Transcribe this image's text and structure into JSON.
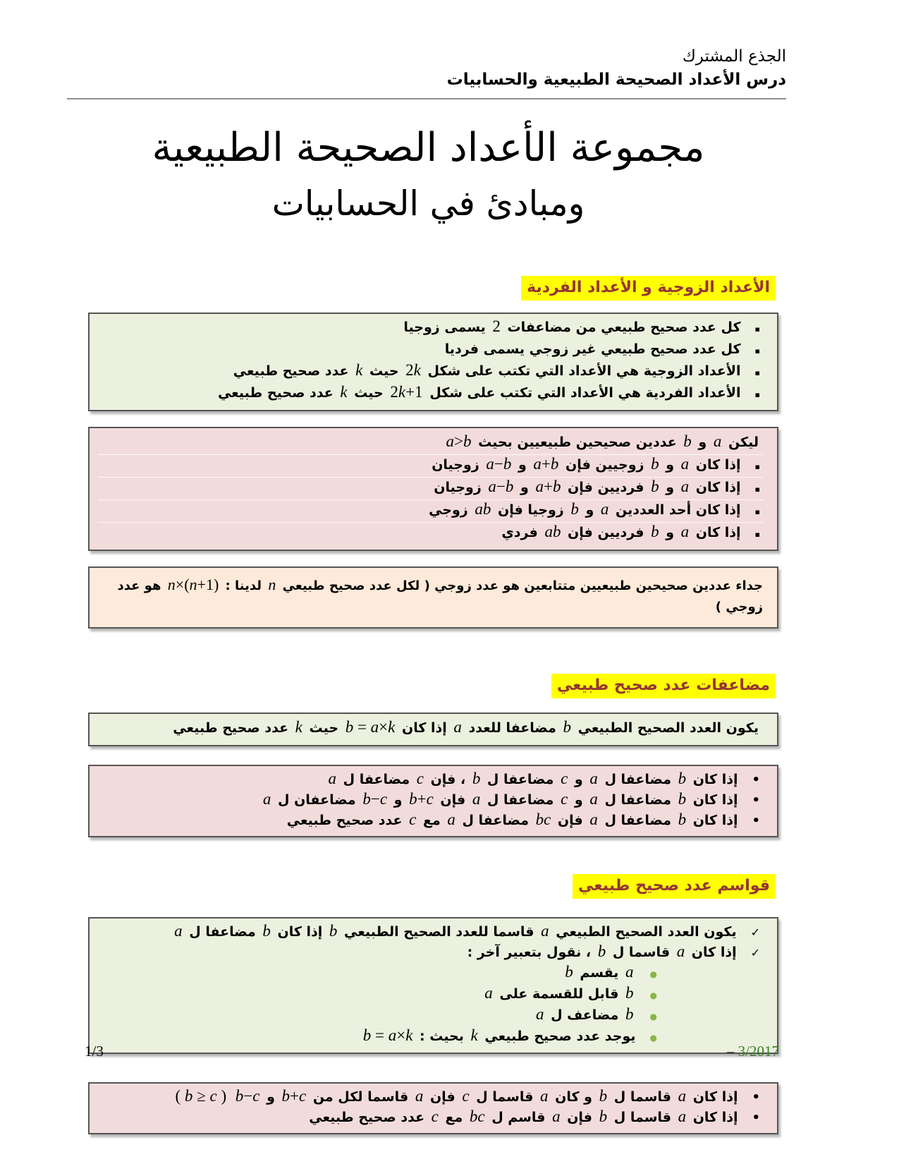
{
  "header": {
    "line1": "الجذع المشترك",
    "line2": "درس الأعداد الصحيحة الطبيعية والحسابيات"
  },
  "title": {
    "line1": "مجموعة الأعداد الصحيحة الطبيعية",
    "line2": "ومبادئ في الحسابيات"
  },
  "sections": {
    "even_odd": {
      "heading": "الأعداد الزوجية و الأعداد الفردية",
      "rules": [
        [
          "كل عدد صحيح طبيعي من مضاعفات ",
          {
            "m": "2"
          },
          " يسمى زوجيا"
        ],
        [
          "كل عدد صحيح طبيعي غير زوجي يسمى فرديا"
        ],
        [
          "الأعداد الزوجية هي الأعداد التي تكتب على شكل ",
          {
            "m": "2k"
          },
          " حيث ",
          {
            "m": "k"
          },
          " عدد صحيح طبيعي"
        ],
        [
          "الأعداد الفردية هي الأعداد التي تكتب على شكل ",
          {
            "m": "2k+1"
          },
          " حيث ",
          {
            "m": "k"
          },
          " عدد صحيح طبيعي"
        ]
      ],
      "properties_intro": [
        "ليكن ",
        {
          "m": "a"
        },
        " و ",
        {
          "m": "b"
        },
        " عددين صحيحين طبيعيين بحيث ",
        {
          "m": "a>b"
        }
      ],
      "properties": [
        [
          "إذا كان ",
          {
            "m": "a"
          },
          " و ",
          {
            "m": "b"
          },
          " زوجيين فإن ",
          {
            "m": "a+b"
          },
          " و ",
          {
            "m": "a−b"
          },
          " زوجيان"
        ],
        [
          "إذا كان ",
          {
            "m": "a"
          },
          " و ",
          {
            "m": "b"
          },
          " فرديين فإن ",
          {
            "m": "a+b"
          },
          " و ",
          {
            "m": "a−b"
          },
          " زوجيان"
        ],
        [
          "إذا كان أحد العددين ",
          {
            "m": "a"
          },
          " و ",
          {
            "m": "b"
          },
          " زوجيا فإن ",
          {
            "m": "ab"
          },
          " زوجي"
        ],
        [
          "إذا كان ",
          {
            "m": "a"
          },
          " و ",
          {
            "m": "b"
          },
          " فرديين فإن ",
          {
            "m": "ab"
          },
          " فردي"
        ]
      ],
      "product_note": [
        "جداء عددين صحيحين طبيعيين متتابعين هو عدد زوجي ( لكل عدد صحيح طبيعي ",
        {
          "m": "n"
        },
        " لدينا : ",
        {
          "m": "n×(n+1)"
        },
        " هو عدد زوجي )"
      ]
    },
    "multiples": {
      "heading": "مضاعفات عدد صحيح طبيعي",
      "definition": [
        "يكون العدد الصحيح الطبيعي ",
        {
          "m": "b"
        },
        " مضاعفا للعدد ",
        {
          "m": "a"
        },
        " إذا كان ",
        {
          "m": "b = a×k"
        },
        " حيث ",
        {
          "m": "k"
        },
        " عدد صحيح طبيعي"
      ],
      "properties": [
        [
          "إذا كان ",
          {
            "m": "b"
          },
          " مضاعفا ل ",
          {
            "m": "a"
          },
          " و ",
          {
            "m": "c"
          },
          " مضاعفا ل ",
          {
            "m": "b"
          },
          " ، فإن ",
          {
            "m": "c"
          },
          " مضاعفا ل ",
          {
            "m": "a"
          }
        ],
        [
          "إذا كان ",
          {
            "m": "b"
          },
          " مضاعفا ل ",
          {
            "m": "a"
          },
          " و ",
          {
            "m": "c"
          },
          " مضاعفا ل ",
          {
            "m": "a"
          },
          " فإن ",
          {
            "m": "b+c"
          },
          " و ",
          {
            "m": "b−c"
          },
          " مضاعفان ل ",
          {
            "m": "a"
          }
        ],
        [
          "إذا كان ",
          {
            "m": "b"
          },
          " مضاعفا ل ",
          {
            "m": "a"
          },
          " فإن ",
          {
            "m": "bc"
          },
          " مضاعفا ل ",
          {
            "m": "a"
          },
          " مع ",
          {
            "m": "c"
          },
          " عدد صحيح طبيعي"
        ]
      ]
    },
    "divisors": {
      "heading": "قواسم عدد صحيح طبيعي",
      "definitions": [
        [
          "يكون العدد الصحيح الطبيعي ",
          {
            "m": "a"
          },
          " قاسما للعدد الصحيح الطبيعي ",
          {
            "m": "b"
          },
          " إذا كان ",
          {
            "m": "b"
          },
          " مضاعفا ل ",
          {
            "m": "a"
          }
        ],
        [
          "إذا كان ",
          {
            "m": "a"
          },
          " قاسما ل ",
          {
            "m": "b"
          },
          " ، نقول بتعبير آخر :"
        ]
      ],
      "equivalents": [
        [
          {
            "m": "a"
          },
          " يقسم ",
          {
            "m": "b"
          }
        ],
        [
          {
            "m": "b"
          },
          " قابل للقسمة على ",
          {
            "m": "a"
          }
        ],
        [
          {
            "m": "b"
          },
          " مضاعف ل ",
          {
            "m": "a"
          }
        ],
        [
          "يوجد عدد صحيح طبيعي ",
          {
            "m": "k"
          },
          " بحيث : ",
          {
            "m": "b = a×k"
          }
        ]
      ],
      "properties": [
        [
          "إذا كان ",
          {
            "m": "a"
          },
          " قاسما ل ",
          {
            "m": "b"
          },
          " و كان ",
          {
            "m": "a"
          },
          " قاسما ل ",
          {
            "m": "c"
          },
          " فإن ",
          {
            "m": "a"
          },
          " قاسما لكل من ",
          {
            "m": "b+c"
          },
          " و ",
          {
            "m": "b−c"
          },
          "  ",
          {
            "m": "( b ≥ c )"
          }
        ],
        [
          "إذا كان ",
          {
            "m": "a"
          },
          " قاسما ل ",
          {
            "m": "b"
          },
          " فإن ",
          {
            "m": "a"
          },
          " قاسم ل ",
          {
            "m": "bc"
          },
          " مع ",
          {
            "m": "c"
          },
          " عدد صحيح طبيعي"
        ]
      ]
    }
  },
  "footer": {
    "page": "1/3",
    "dash": "–",
    "date": "3/2017"
  },
  "colors": {
    "highlight": "#ffff00",
    "heading_text": "#943634",
    "box_green": "#ebf1de",
    "box_pink": "#f2dcdb",
    "box_orange": "#fdeada",
    "date_green": "#377d22",
    "green_dot": "#8ab54a"
  }
}
